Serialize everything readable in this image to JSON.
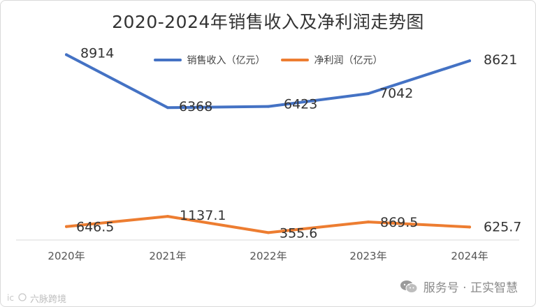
{
  "chart_data": {
    "type": "line",
    "title": "2020-2024年销售收入及净利润走势图",
    "categories": [
      "2020年",
      "2021年",
      "2022年",
      "2023年",
      "2024年"
    ],
    "series": [
      {
        "name": "销售收入（亿元）",
        "values": [
          8914,
          6368,
          6423,
          7042,
          8621
        ],
        "color": "#4472c4",
        "labels": [
          "8914",
          "6368",
          "6423",
          "7042",
          "8621"
        ]
      },
      {
        "name": "净利润（亿元）",
        "values": [
          646.5,
          1137.1,
          355.6,
          869.5,
          625.7
        ],
        "color": "#ed7d31",
        "labels": [
          "646.5",
          "1137.1",
          "355.6",
          "869.5",
          "625.7"
        ]
      }
    ],
    "ylim": [
      0,
      10000
    ],
    "grid": false,
    "legend": "top-center"
  },
  "watermark": {
    "right_text": "服务号 · 正实智慧",
    "right_icon": "wechat-icon",
    "left_text": "六脉跨境",
    "left_icon": "brand-logo-icon"
  }
}
